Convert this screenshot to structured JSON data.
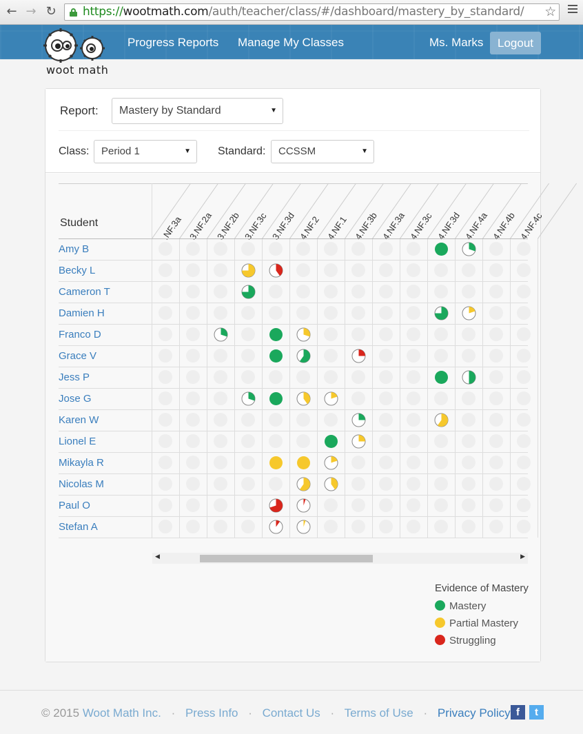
{
  "browser": {
    "url_scheme": "https://",
    "url_host": "wootmath.com",
    "url_path": "/auth/teacher/class/#/dashboard/mastery_by_standard/"
  },
  "app": {
    "logo_text": "woot math",
    "nav": [
      "Progress Reports",
      "Manage My Classes"
    ],
    "user": "Ms. Marks",
    "logout": "Logout"
  },
  "filters": {
    "report_label": "Report:",
    "report_value": "Mastery by Standard",
    "class_label": "Class:",
    "class_value": "Period 1",
    "standard_label": "Standard:",
    "standard_value": "CCSSM"
  },
  "grid": {
    "student_header": "Student",
    "standards": [
      "3.NF.3a",
      "3.NF.2a",
      "3.NF.2b",
      "3.NF.3c",
      "3.NF.3d",
      "4.NF.2",
      "4.NF.1",
      "4.NF.3b",
      "4.NF.3a",
      "4.NF.3c",
      "4.NF.3d",
      "4.NF.4a",
      "4.NF.4b",
      "4.NF.4c"
    ],
    "visible_header_text": [
      ".NF.3a",
      "3.NF.2a",
      "3.NF.2b",
      "3.NF.3c",
      "3.NF.3d",
      "4.NF.2",
      "4.NF.1",
      "4.NF.3b",
      "4.NF.3a",
      "4.NF.3c",
      "4.NF.3d",
      "4.NF.4a",
      "4.NF.4b",
      "4.NF.4c"
    ],
    "students": [
      {
        "name": "Amy B",
        "cells": [
          {
            "col": 10,
            "status": "mastery",
            "fraction": 1.0
          },
          {
            "col": 11,
            "status": "mastery",
            "fraction": 0.3
          }
        ]
      },
      {
        "name": "Becky L",
        "cells": [
          {
            "col": 3,
            "status": "partial",
            "fraction": 0.75
          },
          {
            "col": 4,
            "status": "struggling",
            "fraction": 0.4
          }
        ]
      },
      {
        "name": "Cameron T",
        "cells": [
          {
            "col": 3,
            "status": "mastery",
            "fraction": 0.75
          }
        ]
      },
      {
        "name": "Damien H",
        "cells": [
          {
            "col": 10,
            "status": "mastery",
            "fraction": 0.75
          },
          {
            "col": 11,
            "status": "partial",
            "fraction": 0.2
          }
        ]
      },
      {
        "name": "Franco D",
        "cells": [
          {
            "col": 2,
            "status": "mastery",
            "fraction": 0.3
          },
          {
            "col": 4,
            "status": "mastery",
            "fraction": 1.0
          },
          {
            "col": 5,
            "status": "partial",
            "fraction": 0.3
          }
        ]
      },
      {
        "name": "Grace V",
        "cells": [
          {
            "col": 4,
            "status": "mastery",
            "fraction": 1.0
          },
          {
            "col": 5,
            "status": "mastery",
            "fraction": 0.6
          },
          {
            "col": 7,
            "status": "struggling",
            "fraction": 0.25
          }
        ]
      },
      {
        "name": "Jess P",
        "cells": [
          {
            "col": 10,
            "status": "mastery",
            "fraction": 1.0
          },
          {
            "col": 11,
            "status": "mastery",
            "fraction": 0.5
          }
        ]
      },
      {
        "name": "Jose G",
        "cells": [
          {
            "col": 3,
            "status": "mastery",
            "fraction": 0.3
          },
          {
            "col": 4,
            "status": "mastery",
            "fraction": 1.0
          },
          {
            "col": 5,
            "status": "partial",
            "fraction": 0.4
          },
          {
            "col": 6,
            "status": "partial",
            "fraction": 0.2
          }
        ]
      },
      {
        "name": "Karen W",
        "cells": [
          {
            "col": 7,
            "status": "mastery",
            "fraction": 0.25
          },
          {
            "col": 10,
            "status": "partial",
            "fraction": 0.6
          }
        ]
      },
      {
        "name": "Lionel E",
        "cells": [
          {
            "col": 6,
            "status": "mastery",
            "fraction": 1.0
          },
          {
            "col": 7,
            "status": "partial",
            "fraction": 0.25
          }
        ]
      },
      {
        "name": "Mikayla R",
        "cells": [
          {
            "col": 4,
            "status": "partial",
            "fraction": 1.0
          },
          {
            "col": 5,
            "status": "partial",
            "fraction": 1.0
          },
          {
            "col": 6,
            "status": "partial",
            "fraction": 0.2
          }
        ]
      },
      {
        "name": "Nicolas M",
        "cells": [
          {
            "col": 5,
            "status": "partial",
            "fraction": 0.6
          },
          {
            "col": 6,
            "status": "partial",
            "fraction": 0.4
          }
        ]
      },
      {
        "name": "Paul O",
        "cells": [
          {
            "col": 4,
            "status": "struggling",
            "fraction": 0.7
          },
          {
            "col": 5,
            "status": "struggling",
            "fraction": 0.05
          }
        ]
      },
      {
        "name": "Stefan A",
        "cells": [
          {
            "col": 4,
            "status": "struggling",
            "fraction": 0.1
          },
          {
            "col": 5,
            "status": "partial",
            "fraction": 0.05
          }
        ]
      }
    ]
  },
  "colors": {
    "mastery": "#1aa85c",
    "partial": "#f6c82c",
    "struggling": "#d9261c",
    "empty": "#eeeeee",
    "header_blue": "#3a83b6",
    "link_blue": "#3a7ebd"
  },
  "legend": {
    "title": "Evidence of Mastery",
    "items": [
      {
        "key": "mastery",
        "label": "Mastery"
      },
      {
        "key": "partial",
        "label": "Partial Mastery"
      },
      {
        "key": "struggling",
        "label": "Struggling"
      }
    ]
  },
  "footer": {
    "copyright": "© 2015",
    "company": "Woot Math Inc.",
    "links": [
      "Press Info",
      "Contact Us",
      "Terms of Use",
      "Privacy Policy"
    ],
    "social_facebook_glyph": "f",
    "social_twitter_glyph": "t"
  }
}
